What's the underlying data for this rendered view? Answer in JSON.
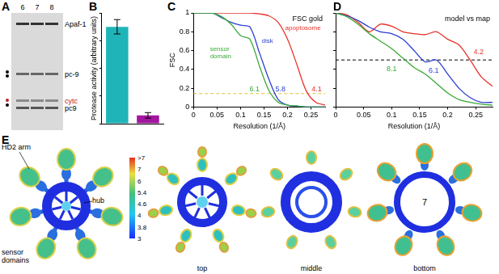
{
  "gel": {
    "panel": "A",
    "lanes": [
      6,
      7,
      8
    ],
    "bands": [
      {
        "text": "Apaf-1",
        "color": "#000000"
      },
      {
        "text": "pc-9",
        "color": "#000000"
      },
      {
        "text": "cytc",
        "color": "#c0202a"
      },
      {
        "text": "pc9",
        "color": "#000000"
      }
    ]
  },
  "chart_data": [
    {
      "panel": "B",
      "type": "bar",
      "categories": [
        null,
        null
      ],
      "values": [
        17.5,
        1.5
      ],
      "errors": [
        1.3,
        0.5
      ],
      "colors": [
        "#1fb5b8",
        "#a3169f"
      ],
      "ylabel": "Protease activity (arbitrary units)",
      "ylim": [
        0,
        20
      ],
      "yticks": [
        0,
        5,
        10,
        15,
        20
      ],
      "tick_labels": false,
      "grid": false
    },
    {
      "panel": "C",
      "type": "line",
      "title": "FSC gold",
      "xlabel": "Resolution (1/Å)",
      "ylabel": "FSC",
      "x": [
        0,
        0.02,
        0.04,
        0.06,
        0.08,
        0.1,
        0.12,
        0.14,
        0.16,
        0.18,
        0.2,
        0.22,
        0.24,
        0.26,
        0.28
      ],
      "series": [
        {
          "name": "sensor domain",
          "color": "#3aaa35",
          "values": [
            1,
            1,
            1,
            0.96,
            0.88,
            0.76,
            0.72,
            0.44,
            0.18,
            0.05,
            0.02,
            0.01,
            0,
            0,
            0
          ]
        },
        {
          "name": "disk",
          "color": "#2b3fd4",
          "values": [
            1,
            1,
            1,
            0.95,
            0.9,
            0.87,
            0.85,
            0.58,
            0.3,
            0.08,
            0.02,
            0.01,
            0,
            0,
            0
          ]
        },
        {
          "name": "apoptosome",
          "color": "#e8332a",
          "values": [
            1,
            1,
            1,
            1,
            1,
            1,
            1,
            0.99,
            0.97,
            0.9,
            0.72,
            0.45,
            0.17,
            0.05,
            0.02
          ]
        }
      ],
      "threshold": {
        "value": 0.143,
        "color": "#d9c23a"
      },
      "annotations": [
        {
          "value": 6.1,
          "x": 0.13,
          "y": 0.17,
          "color": "#3aaa35"
        },
        {
          "value": 5.8,
          "x": 0.185,
          "y": 0.17,
          "color": "#2b3fd4"
        },
        {
          "value": 4.1,
          "x": 0.262,
          "y": 0.17,
          "color": "#e8332a"
        }
      ],
      "xlim": [
        0,
        0.28
      ],
      "ylim": [
        0,
        1
      ],
      "xticks": [
        0,
        0.05,
        0.1,
        0.15,
        0.2,
        0.25
      ],
      "yticks": [
        0,
        0.2,
        0.4,
        0.6,
        0.8,
        1
      ],
      "grid": false
    },
    {
      "panel": "D",
      "type": "line",
      "title": "model vs map",
      "xlabel": "Resolution (1/Å)",
      "x": [
        0,
        0.02,
        0.04,
        0.06,
        0.08,
        0.1,
        0.12,
        0.14,
        0.16,
        0.18,
        0.2,
        0.22,
        0.24,
        0.26,
        0.28
      ],
      "series": [
        {
          "name": "sensor domain",
          "color": "#3aaa35",
          "values": [
            1,
            0.96,
            0.88,
            0.78,
            0.7,
            0.62,
            0.52,
            0.42,
            0.35,
            0.25,
            0.15,
            0.08,
            0.05,
            0.03,
            0.02
          ]
        },
        {
          "name": "disk",
          "color": "#2b3fd4",
          "values": [
            1,
            0.97,
            0.92,
            0.85,
            0.8,
            0.78,
            0.72,
            0.6,
            0.48,
            0.5,
            0.35,
            0.2,
            0.1,
            0.05,
            0.05
          ]
        },
        {
          "name": "apoptosome",
          "color": "#e8332a",
          "values": [
            1,
            0.98,
            0.9,
            0.8,
            0.88,
            0.86,
            0.8,
            0.78,
            0.77,
            0.8,
            0.72,
            0.66,
            0.5,
            0.32,
            0.22
          ]
        }
      ],
      "threshold": {
        "value": 0.5,
        "color": "#000000"
      },
      "annotations": [
        {
          "value": 8.1,
          "x": 0.1,
          "y": 0.38,
          "color": "#3aaa35"
        },
        {
          "value": 6.1,
          "x": 0.175,
          "y": 0.36,
          "color": "#2b3fd4"
        },
        {
          "value": 4.2,
          "x": 0.255,
          "y": 0.56,
          "color": "#e8332a"
        }
      ],
      "xlim": [
        0,
        0.28
      ],
      "ylim": [
        0,
        1
      ],
      "xticks": [
        0,
        0.05,
        0.1,
        0.15,
        0.2,
        0.25
      ],
      "yticks": [
        0,
        0.2,
        0.4,
        0.6,
        0.8,
        1
      ],
      "tick_labels": "x",
      "grid": false
    }
  ],
  "maps": {
    "panel": "E",
    "arm_label": "HD2 arm",
    "hub_label": "hub",
    "sensor_label": "sensor domains",
    "views": [
      "top",
      "middle",
      "bottom"
    ],
    "symmetry": 7,
    "colorbar": {
      "ticks": [
        3,
        3.8,
        4,
        4.6,
        5.4,
        6,
        7
      ],
      "top_label": ">7"
    }
  }
}
